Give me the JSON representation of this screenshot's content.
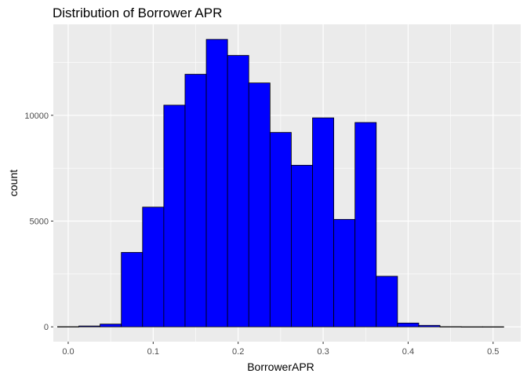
{
  "chart_data": {
    "type": "bar",
    "title": "Distribution of Borrower APR",
    "xlabel": "BorrowerAPR",
    "ylabel": "count",
    "xlim": [
      -0.0175,
      0.5325
    ],
    "ylim": [
      -700,
      14300
    ],
    "x_ticks": [
      0.0,
      0.1,
      0.2,
      0.3,
      0.4,
      0.5
    ],
    "x_tick_labels": [
      "0.0",
      "0.1",
      "0.2",
      "0.3",
      "0.4",
      "0.5"
    ],
    "y_ticks": [
      0,
      5000,
      10000
    ],
    "y_tick_labels": [
      "0",
      "5000",
      "10000"
    ],
    "bin_width": 0.025,
    "bin_centers": [
      0.0,
      0.025,
      0.05,
      0.075,
      0.1,
      0.125,
      0.15,
      0.175,
      0.2,
      0.225,
      0.25,
      0.275,
      0.3,
      0.325,
      0.35,
      0.375,
      0.4,
      0.425,
      0.45,
      0.475,
      0.5
    ],
    "values": [
      10,
      40,
      130,
      3520,
      5660,
      10480,
      11940,
      13590,
      12830,
      11530,
      9190,
      7640,
      9880,
      5080,
      9660,
      2390,
      180,
      70,
      10,
      5,
      5
    ],
    "fill_color": "#0000FF",
    "outline_color": "#000000",
    "panel_background": "#EBEBEB",
    "grid_color": "#FFFFFF",
    "grid": true,
    "legend": "none"
  }
}
